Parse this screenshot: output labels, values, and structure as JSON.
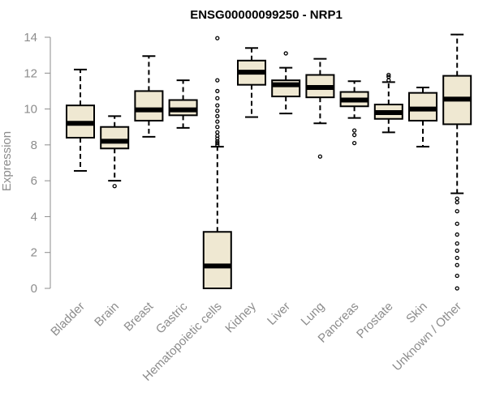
{
  "chart_data": {
    "type": "box",
    "title": "ENSG00000099250 - NRP1",
    "ylabel": "Expression",
    "ylim": [
      0,
      14
    ],
    "yticks": [
      0,
      2,
      4,
      6,
      8,
      10,
      12,
      14
    ],
    "grid": false,
    "box_fill": "#efe8d2",
    "box_stroke": "#000000",
    "axis_color": "#8c8c8c",
    "categories": [
      "Bladder",
      "Brain",
      "Breast",
      "Gastric",
      "Hematopoietic cells",
      "Kidney",
      "Liver",
      "Lung",
      "Pancreas",
      "Prostate",
      "Skin",
      "Unknown / Other"
    ],
    "boxes": [
      {
        "category": "Bladder",
        "whisker_low": 6.55,
        "q1": 8.4,
        "median": 9.2,
        "q3": 10.2,
        "whisker_high": 12.2,
        "outliers": []
      },
      {
        "category": "Brain",
        "whisker_low": 6.0,
        "q1": 7.8,
        "median": 8.2,
        "q3": 9.0,
        "whisker_high": 9.6,
        "outliers": [
          5.7
        ]
      },
      {
        "category": "Breast",
        "whisker_low": 8.45,
        "q1": 9.35,
        "median": 9.95,
        "q3": 11.0,
        "whisker_high": 12.95,
        "outliers": []
      },
      {
        "category": "Gastric",
        "whisker_low": 8.95,
        "q1": 9.65,
        "median": 9.95,
        "q3": 10.5,
        "whisker_high": 11.6,
        "outliers": []
      },
      {
        "category": "Hematopoietic cells",
        "whisker_low": 0.0,
        "q1": 0.0,
        "median": 1.25,
        "q3": 3.15,
        "whisker_high": 7.9,
        "outliers": [
          8.0,
          8.1,
          8.2,
          8.35,
          8.5,
          8.7,
          9.0,
          9.3,
          9.6,
          9.9,
          10.2,
          10.6,
          11.0,
          11.6,
          13.95
        ]
      },
      {
        "category": "Kidney",
        "whisker_low": 9.55,
        "q1": 11.35,
        "median": 12.05,
        "q3": 12.7,
        "whisker_high": 13.4,
        "outliers": []
      },
      {
        "category": "Liver",
        "whisker_low": 9.75,
        "q1": 10.7,
        "median": 11.35,
        "q3": 11.6,
        "whisker_high": 12.3,
        "outliers": [
          13.1
        ]
      },
      {
        "category": "Lung",
        "whisker_low": 9.2,
        "q1": 10.65,
        "median": 11.2,
        "q3": 11.9,
        "whisker_high": 12.8,
        "outliers": [
          7.35
        ]
      },
      {
        "category": "Pancreas",
        "whisker_low": 9.5,
        "q1": 10.15,
        "median": 10.5,
        "q3": 10.95,
        "whisker_high": 11.55,
        "outliers": [
          8.1,
          8.55,
          8.8
        ]
      },
      {
        "category": "Prostate",
        "whisker_low": 8.7,
        "q1": 9.45,
        "median": 9.8,
        "q3": 10.25,
        "whisker_high": 11.5,
        "outliers": [
          11.6,
          11.8,
          11.9
        ]
      },
      {
        "category": "Skin",
        "whisker_low": 7.9,
        "q1": 9.35,
        "median": 10.0,
        "q3": 10.9,
        "whisker_high": 11.2,
        "outliers": []
      },
      {
        "category": "Unknown / Other",
        "whisker_low": 5.3,
        "q1": 9.15,
        "median": 10.55,
        "q3": 11.85,
        "whisker_high": 14.15,
        "outliers": [
          0.0,
          0.7,
          1.3,
          1.7,
          2.1,
          2.5,
          3.0,
          3.6,
          4.3,
          4.8,
          5.0
        ]
      }
    ]
  }
}
